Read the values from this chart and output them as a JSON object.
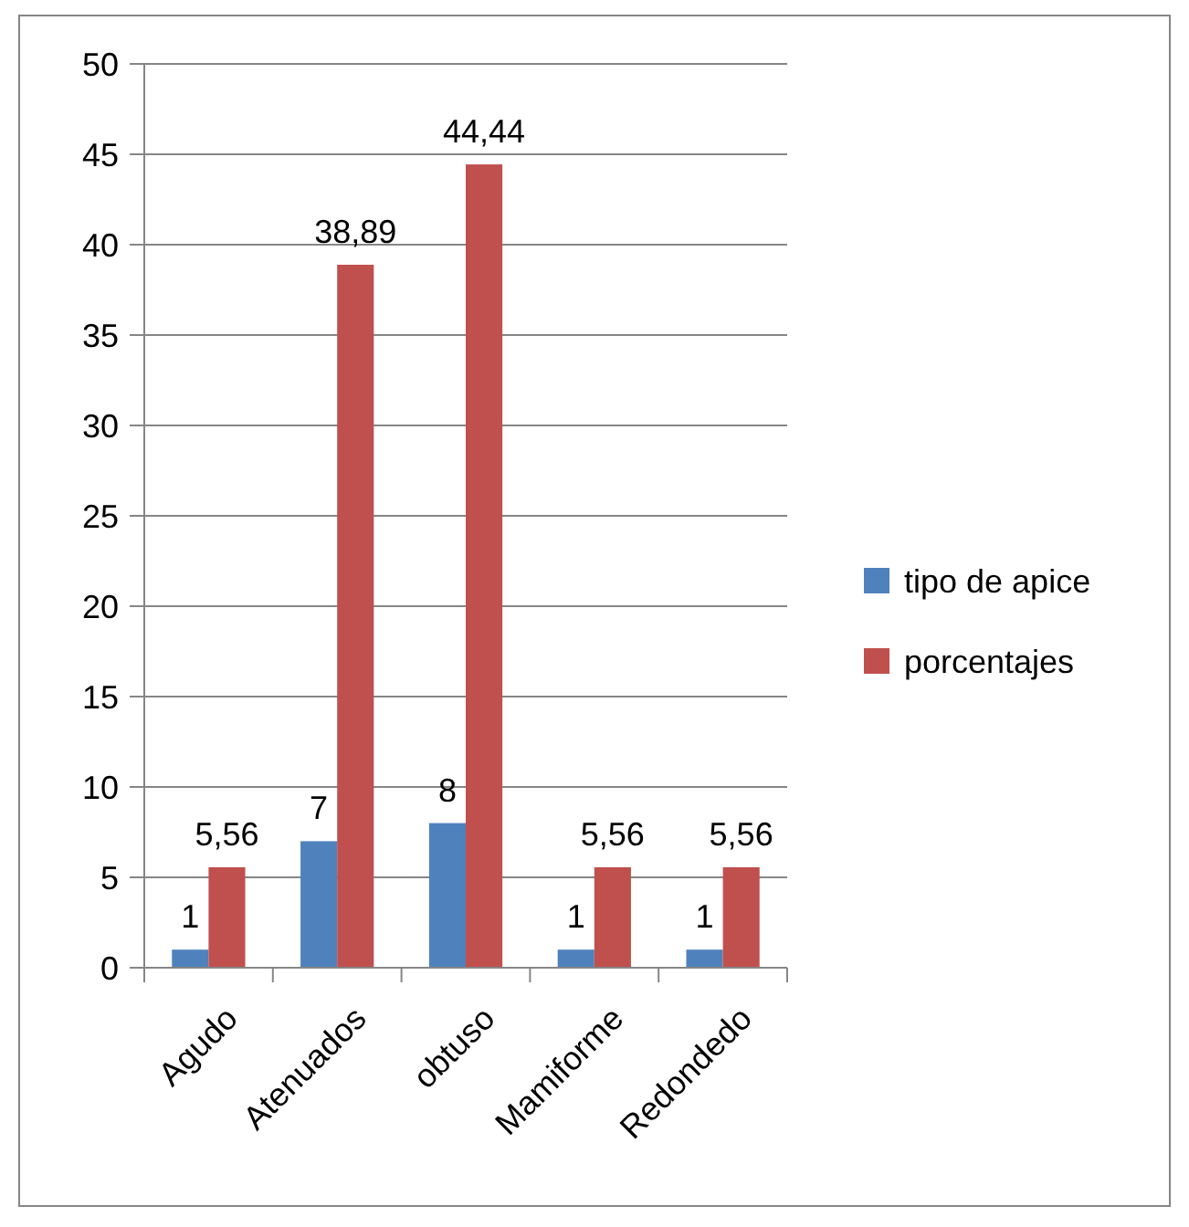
{
  "chart_data": {
    "type": "bar",
    "categories": [
      "Agudo",
      "Atenuados",
      "obtuso",
      "Mamiforme",
      "Redondedo"
    ],
    "series": [
      {
        "name": "tipo de apice",
        "color": "#4f81bd",
        "values": [
          1,
          7,
          8,
          1,
          1
        ],
        "value_labels": [
          "1",
          "7",
          "8",
          "1",
          "1"
        ]
      },
      {
        "name": "porcentajes",
        "color": "#c0504d",
        "values": [
          5.56,
          38.89,
          44.44,
          5.56,
          5.56
        ],
        "value_labels": [
          "5,56",
          "38,89",
          "44,44",
          "5,56",
          "5,56"
        ]
      }
    ],
    "ylim": [
      0,
      50
    ],
    "yticks": [
      0,
      5,
      10,
      15,
      20,
      25,
      30,
      35,
      40,
      45,
      50
    ],
    "grid": "y",
    "legend": "right"
  }
}
